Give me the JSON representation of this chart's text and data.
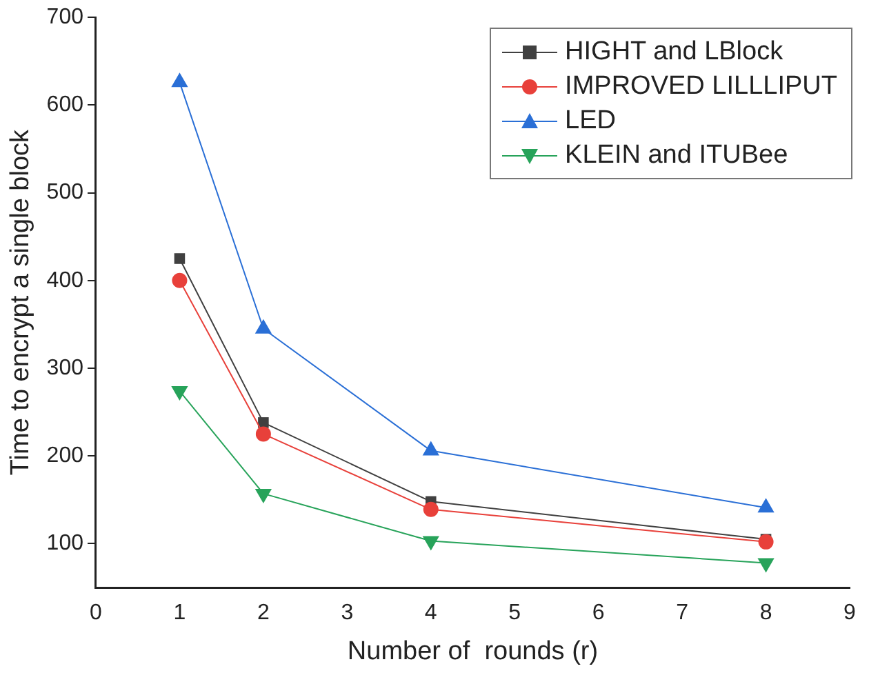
{
  "chart_data": {
    "type": "line",
    "xlabel": "Number of  rounds (r)",
    "ylabel": "Time to encrypt a single block",
    "x": [
      1,
      2,
      4,
      8
    ],
    "series": [
      {
        "name": "HIGHT and LBlock",
        "color": "#404040",
        "marker": "square",
        "values": [
          425,
          238,
          148,
          105
        ]
      },
      {
        "name": "IMPROVED LILLLIPUT",
        "color": "#e8403a",
        "marker": "circle",
        "values": [
          400,
          225,
          139,
          102
        ]
      },
      {
        "name": "LED",
        "color": "#2a6fd6",
        "marker": "triangle",
        "values": [
          626,
          345,
          206,
          141
        ]
      },
      {
        "name": "KLEIN and ITUBee",
        "color": "#27a35a",
        "marker": "triangle-down",
        "values": [
          274,
          157,
          103,
          78
        ]
      }
    ],
    "xlim": [
      0,
      9
    ],
    "xticks": [
      0,
      1,
      2,
      3,
      4,
      5,
      6,
      7,
      8,
      9
    ],
    "ylim": [
      50,
      700
    ],
    "yticks": [
      100,
      200,
      300,
      400,
      500,
      600,
      700
    ],
    "grid": false,
    "legend": "top right",
    "line_style": "solid"
  }
}
